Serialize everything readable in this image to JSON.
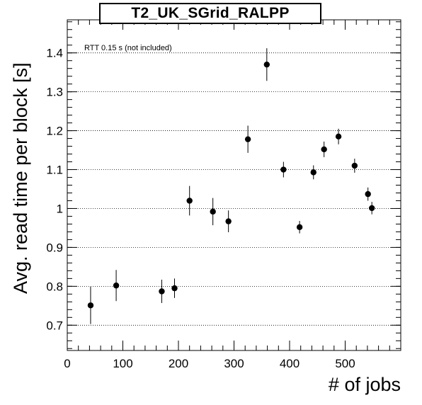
{
  "chart_data": {
    "type": "scatter",
    "title": "T2_UK_SGrid_RALPP",
    "xlabel": "# of jobs",
    "ylabel": "Avg. read time per block [s]",
    "annotation": "RTT 0.15 s (not included)",
    "xlim": [
      0,
      600
    ],
    "ylim": [
      0.635,
      1.485
    ],
    "xticks": [
      0,
      100,
      200,
      300,
      400,
      500
    ],
    "yticks": [
      0.7,
      0.8,
      0.9,
      1.0,
      1.1,
      1.2,
      1.3,
      1.4
    ],
    "ytick_labels": [
      "0.7",
      "0.8",
      "0.9",
      "1",
      "1.1",
      "1.2",
      "1.3",
      "1.4"
    ],
    "grid": "horizontal dotted",
    "points": [
      {
        "x": 42,
        "y": 0.751,
        "err": 0.048
      },
      {
        "x": 88,
        "y": 0.802,
        "err": 0.04
      },
      {
        "x": 170,
        "y": 0.787,
        "err": 0.03
      },
      {
        "x": 193,
        "y": 0.795,
        "err": 0.025
      },
      {
        "x": 220,
        "y": 1.02,
        "err": 0.038
      },
      {
        "x": 262,
        "y": 0.992,
        "err": 0.035
      },
      {
        "x": 290,
        "y": 0.967,
        "err": 0.028
      },
      {
        "x": 325,
        "y": 1.178,
        "err": 0.035
      },
      {
        "x": 359,
        "y": 1.37,
        "err": 0.042
      },
      {
        "x": 389,
        "y": 1.1,
        "err": 0.02
      },
      {
        "x": 418,
        "y": 0.952,
        "err": 0.016
      },
      {
        "x": 443,
        "y": 1.093,
        "err": 0.018
      },
      {
        "x": 462,
        "y": 1.152,
        "err": 0.02
      },
      {
        "x": 488,
        "y": 1.185,
        "err": 0.02
      },
      {
        "x": 517,
        "y": 1.11,
        "err": 0.018
      },
      {
        "x": 541,
        "y": 1.037,
        "err": 0.017
      },
      {
        "x": 548,
        "y": 1.001,
        "err": 0.016
      }
    ]
  }
}
